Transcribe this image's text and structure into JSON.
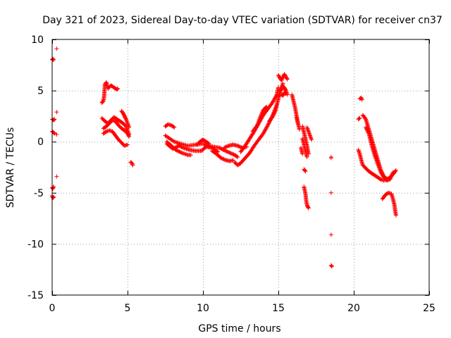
{
  "chart_data": {
    "type": "scatter",
    "title": "Day 321 of 2023, Sidereal Day-to-day VTEC variation (SDTVAR) for receiver cn37",
    "xlabel": "GPS time / hours",
    "ylabel": "SDTVAR / TECUs",
    "xlim": [
      0,
      25
    ],
    "ylim": [
      -15,
      10
    ],
    "x_ticks": [
      0,
      5,
      10,
      15,
      20,
      25
    ],
    "x_tick_labels": [
      "0",
      "5",
      "10",
      "15",
      "20",
      "25"
    ],
    "y_ticks": [
      -15,
      -10,
      -5,
      0,
      5,
      10
    ],
    "y_tick_labels": [
      "-15",
      "-10",
      "-5",
      "0",
      "5",
      "10"
    ],
    "grid": true,
    "marker": "+",
    "color": "#ff0000",
    "segments": [
      [
        [
          0.0,
          8.0
        ],
        [
          0.05,
          8.1
        ],
        [
          0.1,
          8.0
        ]
      ],
      [
        [
          0.0,
          2.2
        ],
        [
          0.1,
          2.1
        ],
        [
          0.15,
          2.2
        ]
      ],
      [
        [
          0.0,
          1.0
        ],
        [
          0.1,
          0.9
        ],
        [
          0.15,
          0.8
        ]
      ],
      [
        [
          0.0,
          -4.5
        ],
        [
          0.05,
          -4.6
        ],
        [
          0.1,
          -4.4
        ]
      ],
      [
        [
          0.0,
          -5.3
        ],
        [
          0.05,
          -5.5
        ],
        [
          0.1,
          -5.4
        ]
      ],
      [
        [
          0.3,
          9.1
        ]
      ],
      [
        [
          0.3,
          2.9
        ]
      ],
      [
        [
          0.3,
          0.7
        ]
      ],
      [
        [
          0.3,
          -3.4
        ]
      ],
      [
        [
          3.3,
          3.8
        ],
        [
          3.4,
          4.0
        ],
        [
          3.45,
          4.5
        ],
        [
          3.5,
          5.6
        ],
        [
          3.6,
          5.8
        ],
        [
          3.7,
          5.2
        ],
        [
          3.9,
          5.5
        ],
        [
          4.1,
          5.3
        ],
        [
          4.3,
          5.1
        ],
        [
          4.35,
          5.2
        ]
      ],
      [
        [
          3.3,
          2.3
        ],
        [
          3.5,
          2.0
        ],
        [
          3.7,
          1.8
        ],
        [
          3.9,
          2.1
        ],
        [
          4.1,
          2.4
        ],
        [
          4.3,
          2.2
        ],
        [
          4.5,
          2.0
        ],
        [
          4.7,
          1.8
        ],
        [
          4.9,
          1.5
        ],
        [
          5.0,
          1.1
        ],
        [
          5.1,
          0.7
        ]
      ],
      [
        [
          3.4,
          1.3
        ],
        [
          3.6,
          1.5
        ],
        [
          3.8,
          1.8
        ],
        [
          4.0,
          2.1
        ],
        [
          4.2,
          2.0
        ],
        [
          4.4,
          1.6
        ],
        [
          4.6,
          1.3
        ],
        [
          4.8,
          1.1
        ],
        [
          5.0,
          0.8
        ],
        [
          5.1,
          0.5
        ]
      ],
      [
        [
          3.4,
          0.8
        ],
        [
          3.6,
          1.0
        ],
        [
          3.8,
          1.1
        ],
        [
          4.0,
          1.0
        ],
        [
          4.2,
          0.6
        ],
        [
          4.4,
          0.2
        ],
        [
          4.6,
          -0.1
        ],
        [
          4.8,
          -0.4
        ],
        [
          5.0,
          -0.3
        ]
      ],
      [
        [
          4.6,
          3.0
        ],
        [
          4.7,
          2.8
        ],
        [
          4.8,
          2.5
        ],
        [
          4.9,
          2.2
        ],
        [
          5.0,
          1.8
        ],
        [
          5.1,
          1.4
        ]
      ],
      [
        [
          5.2,
          -2.0
        ],
        [
          5.3,
          -2.1
        ],
        [
          5.35,
          -2.3
        ]
      ],
      [
        [
          7.5,
          1.5
        ],
        [
          7.7,
          1.7
        ],
        [
          7.9,
          1.6
        ],
        [
          8.1,
          1.4
        ]
      ],
      [
        [
          7.5,
          0.6
        ],
        [
          7.8,
          0.3
        ],
        [
          8.1,
          0.0
        ],
        [
          8.5,
          -0.2
        ],
        [
          9.0,
          -0.4
        ],
        [
          9.5,
          -0.3
        ],
        [
          10.0,
          -0.2
        ],
        [
          10.3,
          -0.4
        ],
        [
          10.7,
          -0.5
        ],
        [
          11.1,
          -0.6
        ],
        [
          11.5,
          -0.9
        ],
        [
          11.8,
          -1.1
        ],
        [
          12.1,
          -1.3
        ],
        [
          12.3,
          -1.5
        ]
      ],
      [
        [
          7.6,
          0.0
        ],
        [
          7.9,
          -0.4
        ],
        [
          8.2,
          -0.8
        ],
        [
          8.6,
          -1.1
        ],
        [
          9.0,
          -1.3
        ],
        [
          9.2,
          -1.3
        ]
      ],
      [
        [
          7.6,
          -0.2
        ],
        [
          8.0,
          -0.7
        ],
        [
          8.4,
          -0.4
        ],
        [
          8.7,
          -0.6
        ],
        [
          9.1,
          -0.8
        ],
        [
          9.5,
          -0.9
        ],
        [
          9.9,
          -0.9
        ],
        [
          10.2,
          -0.5
        ],
        [
          10.6,
          -0.6
        ],
        [
          11.0,
          -1.0
        ]
      ],
      [
        [
          9.6,
          -0.3
        ],
        [
          9.8,
          0.0
        ],
        [
          10.0,
          0.2
        ],
        [
          10.2,
          0.0
        ],
        [
          10.4,
          -0.2
        ]
      ],
      [
        [
          10.6,
          -0.9
        ],
        [
          10.9,
          -1.2
        ],
        [
          11.2,
          -1.6
        ],
        [
          11.5,
          -1.8
        ],
        [
          11.8,
          -1.9
        ],
        [
          12.0,
          -1.8
        ]
      ],
      [
        [
          11.4,
          -0.6
        ],
        [
          11.7,
          -0.4
        ],
        [
          12.0,
          -0.3
        ],
        [
          12.3,
          -0.4
        ],
        [
          12.6,
          -0.6
        ],
        [
          12.9,
          -0.5
        ]
      ],
      [
        [
          12.1,
          -2.0
        ],
        [
          12.3,
          -2.3
        ],
        [
          12.5,
          -2.1
        ],
        [
          12.8,
          -1.6
        ],
        [
          13.1,
          -1.1
        ],
        [
          13.4,
          -0.4
        ],
        [
          13.7,
          0.2
        ],
        [
          14.0,
          0.8
        ],
        [
          14.3,
          1.6
        ],
        [
          14.6,
          2.5
        ],
        [
          14.9,
          3.6
        ],
        [
          15.1,
          4.8
        ],
        [
          15.3,
          5.7
        ]
      ],
      [
        [
          12.5,
          -1.0
        ],
        [
          12.8,
          -0.4
        ],
        [
          13.1,
          0.3
        ],
        [
          13.4,
          1.0
        ],
        [
          13.7,
          1.8
        ],
        [
          14.0,
          2.6
        ],
        [
          14.3,
          3.2
        ],
        [
          14.6,
          3.8
        ],
        [
          14.9,
          4.6
        ],
        [
          15.0,
          5.3
        ]
      ],
      [
        [
          13.3,
          1.0
        ],
        [
          13.6,
          1.6
        ],
        [
          13.8,
          2.4
        ],
        [
          14.0,
          3.1
        ],
        [
          14.2,
          3.4
        ],
        [
          14.3,
          3.2
        ]
      ],
      [
        [
          14.4,
          2.0
        ],
        [
          14.6,
          2.4
        ],
        [
          14.8,
          3.0
        ],
        [
          14.9,
          3.6
        ]
      ],
      [
        [
          15.0,
          6.5
        ],
        [
          15.2,
          6.0
        ],
        [
          15.4,
          6.6
        ],
        [
          15.6,
          6.1
        ]
      ],
      [
        [
          15.0,
          4.4
        ],
        [
          15.1,
          4.9
        ],
        [
          15.2,
          5.1
        ],
        [
          15.3,
          5.4
        ],
        [
          15.4,
          5.3
        ],
        [
          15.5,
          5.0
        ],
        [
          15.6,
          4.6
        ]
      ],
      [
        [
          15.2,
          4.6
        ],
        [
          15.3,
          4.5
        ],
        [
          15.4,
          4.8
        ],
        [
          15.5,
          4.7
        ]
      ],
      [
        [
          15.9,
          4.6
        ],
        [
          16.0,
          4.0
        ],
        [
          16.1,
          3.4
        ],
        [
          16.2,
          2.6
        ],
        [
          16.3,
          1.8
        ],
        [
          16.4,
          1.2
        ]
      ],
      [
        [
          16.2,
          2.4
        ],
        [
          16.3,
          1.8
        ]
      ],
      [
        [
          16.6,
          1.5
        ],
        [
          16.7,
          0.9
        ],
        [
          16.8,
          0.3
        ],
        [
          16.9,
          -0.4
        ],
        [
          17.0,
          -1.2
        ]
      ],
      [
        [
          16.6,
          0.3
        ],
        [
          16.7,
          -0.3
        ],
        [
          16.8,
          -0.9
        ],
        [
          16.9,
          -1.5
        ]
      ],
      [
        [
          16.7,
          -2.7
        ],
        [
          16.8,
          -2.9
        ]
      ],
      [
        [
          16.7,
          -4.4
        ],
        [
          16.8,
          -5.1
        ],
        [
          16.85,
          -5.8
        ],
        [
          16.9,
          -6.2
        ],
        [
          17.0,
          -6.5
        ]
      ],
      [
        [
          16.9,
          1.4
        ],
        [
          17.0,
          1.0
        ],
        [
          17.1,
          0.6
        ],
        [
          17.2,
          0.2
        ]
      ],
      [
        [
          16.5,
          -0.6
        ],
        [
          16.6,
          -1.2
        ]
      ],
      [
        [
          18.5,
          -1.5
        ],
        [
          18.5,
          -1.6
        ]
      ],
      [
        [
          18.5,
          -5.0
        ]
      ],
      [
        [
          18.5,
          -9.1
        ]
      ],
      [
        [
          18.5,
          -12.1
        ],
        [
          18.55,
          -12.2
        ]
      ],
      [
        [
          20.4,
          4.2
        ],
        [
          20.5,
          4.3
        ],
        [
          20.55,
          4.1
        ]
      ],
      [
        [
          20.3,
          2.2
        ],
        [
          20.4,
          2.3
        ]
      ],
      [
        [
          20.3,
          -0.8
        ],
        [
          20.4,
          -1.2
        ],
        [
          20.5,
          -1.8
        ],
        [
          20.6,
          -2.3
        ],
        [
          20.8,
          -2.6
        ],
        [
          21.0,
          -2.9
        ],
        [
          21.2,
          -3.1
        ],
        [
          21.4,
          -3.3
        ],
        [
          21.6,
          -3.5
        ],
        [
          21.8,
          -3.7
        ],
        [
          22.0,
          -3.8
        ],
        [
          22.2,
          -3.7
        ],
        [
          22.4,
          -3.5
        ],
        [
          22.6,
          -3.2
        ],
        [
          22.8,
          -2.8
        ]
      ],
      [
        [
          20.6,
          2.6
        ],
        [
          20.8,
          2.2
        ],
        [
          21.0,
          1.2
        ],
        [
          21.2,
          0.2
        ],
        [
          21.4,
          -0.8
        ],
        [
          21.6,
          -1.8
        ],
        [
          21.8,
          -2.8
        ],
        [
          22.0,
          -3.4
        ],
        [
          22.2,
          -3.8
        ],
        [
          22.4,
          -3.7
        ],
        [
          22.6,
          -3.0
        ]
      ],
      [
        [
          20.8,
          1.4
        ],
        [
          21.0,
          0.8
        ],
        [
          21.2,
          -0.4
        ],
        [
          21.4,
          -1.4
        ],
        [
          21.6,
          -2.2
        ],
        [
          21.8,
          -3.0
        ],
        [
          22.0,
          -3.5
        ],
        [
          22.2,
          -3.6
        ]
      ],
      [
        [
          21.9,
          -5.6
        ],
        [
          22.1,
          -5.2
        ],
        [
          22.3,
          -5.0
        ],
        [
          22.5,
          -5.1
        ],
        [
          22.6,
          -5.6
        ],
        [
          22.7,
          -6.2
        ],
        [
          22.75,
          -6.8
        ],
        [
          22.8,
          -7.2
        ]
      ]
    ]
  }
}
